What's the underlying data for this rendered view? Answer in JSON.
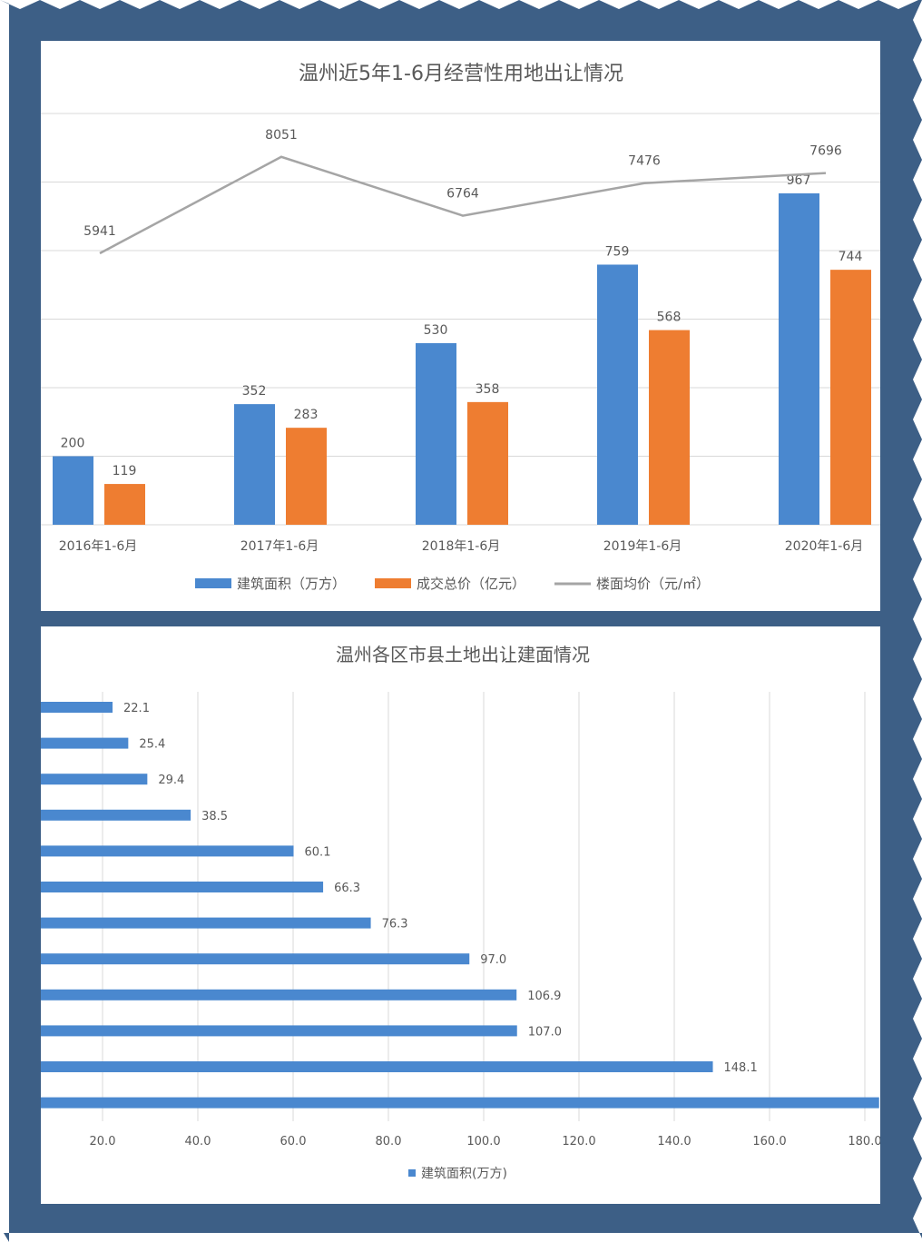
{
  "colors": {
    "frame": "#3d5f86",
    "panel": "#ffffff",
    "blue": "#4a88cf",
    "orange": "#ee7d31",
    "line": "#a5a5a5",
    "grid": "#d9d9d9",
    "text": "#595959"
  },
  "chart_data": [
    {
      "type": "bar",
      "title": "温州近5年1-6月经营性用地出让情况",
      "categories": [
        "2016年1-6月",
        "2017年1-6月",
        "2018年1-6月",
        "2019年1-6月",
        "2020年1-6月"
      ],
      "series": [
        {
          "name": "建筑面积（万方）",
          "kind": "bar",
          "color": "#4a88cf",
          "values": [
            200,
            352,
            530,
            759,
            967
          ]
        },
        {
          "name": "成交总价（亿元）",
          "kind": "bar",
          "color": "#ee7d31",
          "values": [
            119,
            283,
            358,
            568,
            744
          ]
        },
        {
          "name": "楼面均价（元/㎡）",
          "kind": "line",
          "axis": "secondary",
          "color": "#a5a5a5",
          "values": [
            5941,
            8051,
            6764,
            7476,
            7696
          ]
        }
      ],
      "ylim": [
        0,
        1200
      ],
      "y2lim": [
        0,
        9000
      ],
      "grid": true,
      "legend": "bottom"
    },
    {
      "type": "bar",
      "orientation": "horizontal",
      "title": "温州各区市县土地出让建面情况",
      "series": [
        {
          "name": "建筑面积(万方)",
          "color": "#4a88cf",
          "values": [
            22.1,
            25.4,
            29.4,
            38.5,
            60.1,
            66.3,
            76.3,
            97.0,
            106.9,
            107.0,
            148.1,
            183
          ]
        }
      ],
      "value_labels": [
        "22.1",
        "25.4",
        "29.4",
        "38.5",
        "60.1",
        "66.3",
        "76.3",
        "97.0",
        "106.9",
        "107.0",
        "148.1",
        ""
      ],
      "xticks": [
        "20.0",
        "40.0",
        "60.0",
        "80.0",
        "100.0",
        "120.0",
        "140.0",
        "160.0",
        "180.0"
      ],
      "xlim": [
        0,
        180
      ],
      "grid": true,
      "legend": "bottom"
    }
  ]
}
